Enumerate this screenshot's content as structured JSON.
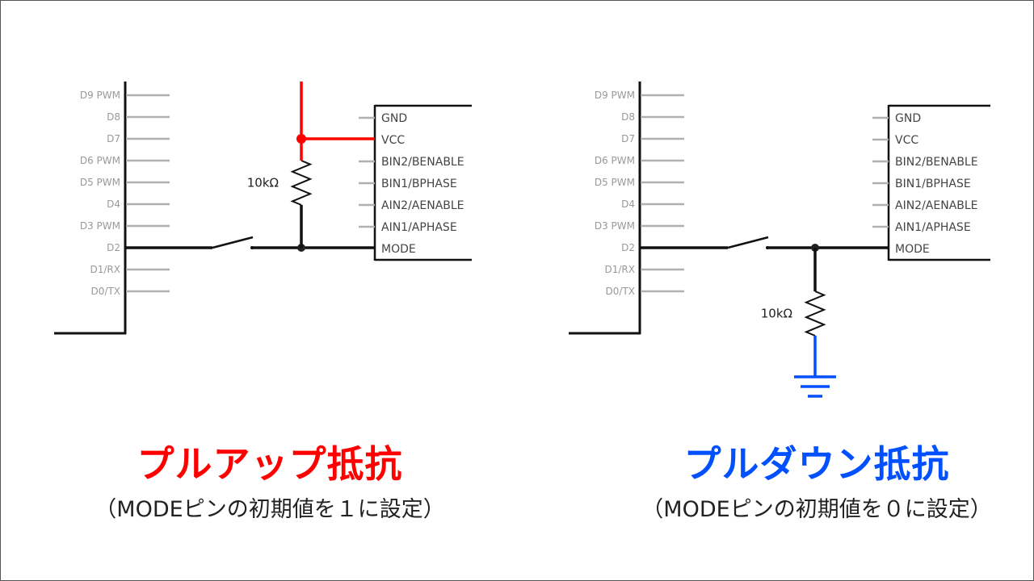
{
  "header_pins": [
    "D9 PWM",
    "D8",
    "D7",
    "D6 PWM",
    "D5 PWM",
    "D4",
    "D3 PWM",
    "D2",
    "D1/RX",
    "D0/TX"
  ],
  "chip_pins": [
    "GND",
    "VCC",
    "BIN2/BENABLE",
    "BIN1/BPHASE",
    "AIN2/AENABLE",
    "AIN1/APHASE",
    "MODE"
  ],
  "colors": {
    "pullup": "#ff0000",
    "pulldown": "#0050ff",
    "wire": "#111111",
    "pin": "#b0b0b0"
  },
  "left": {
    "type": "pull-up",
    "resistor_label": "10kΩ",
    "title": "プルアップ抵抗",
    "subtitle": "（MODEピンの初期値を１に設定）"
  },
  "right": {
    "type": "pull-down",
    "resistor_label": "10kΩ",
    "title": "プルダウン抵抗",
    "subtitle": "（MODEピンの初期値を０に設定）"
  }
}
